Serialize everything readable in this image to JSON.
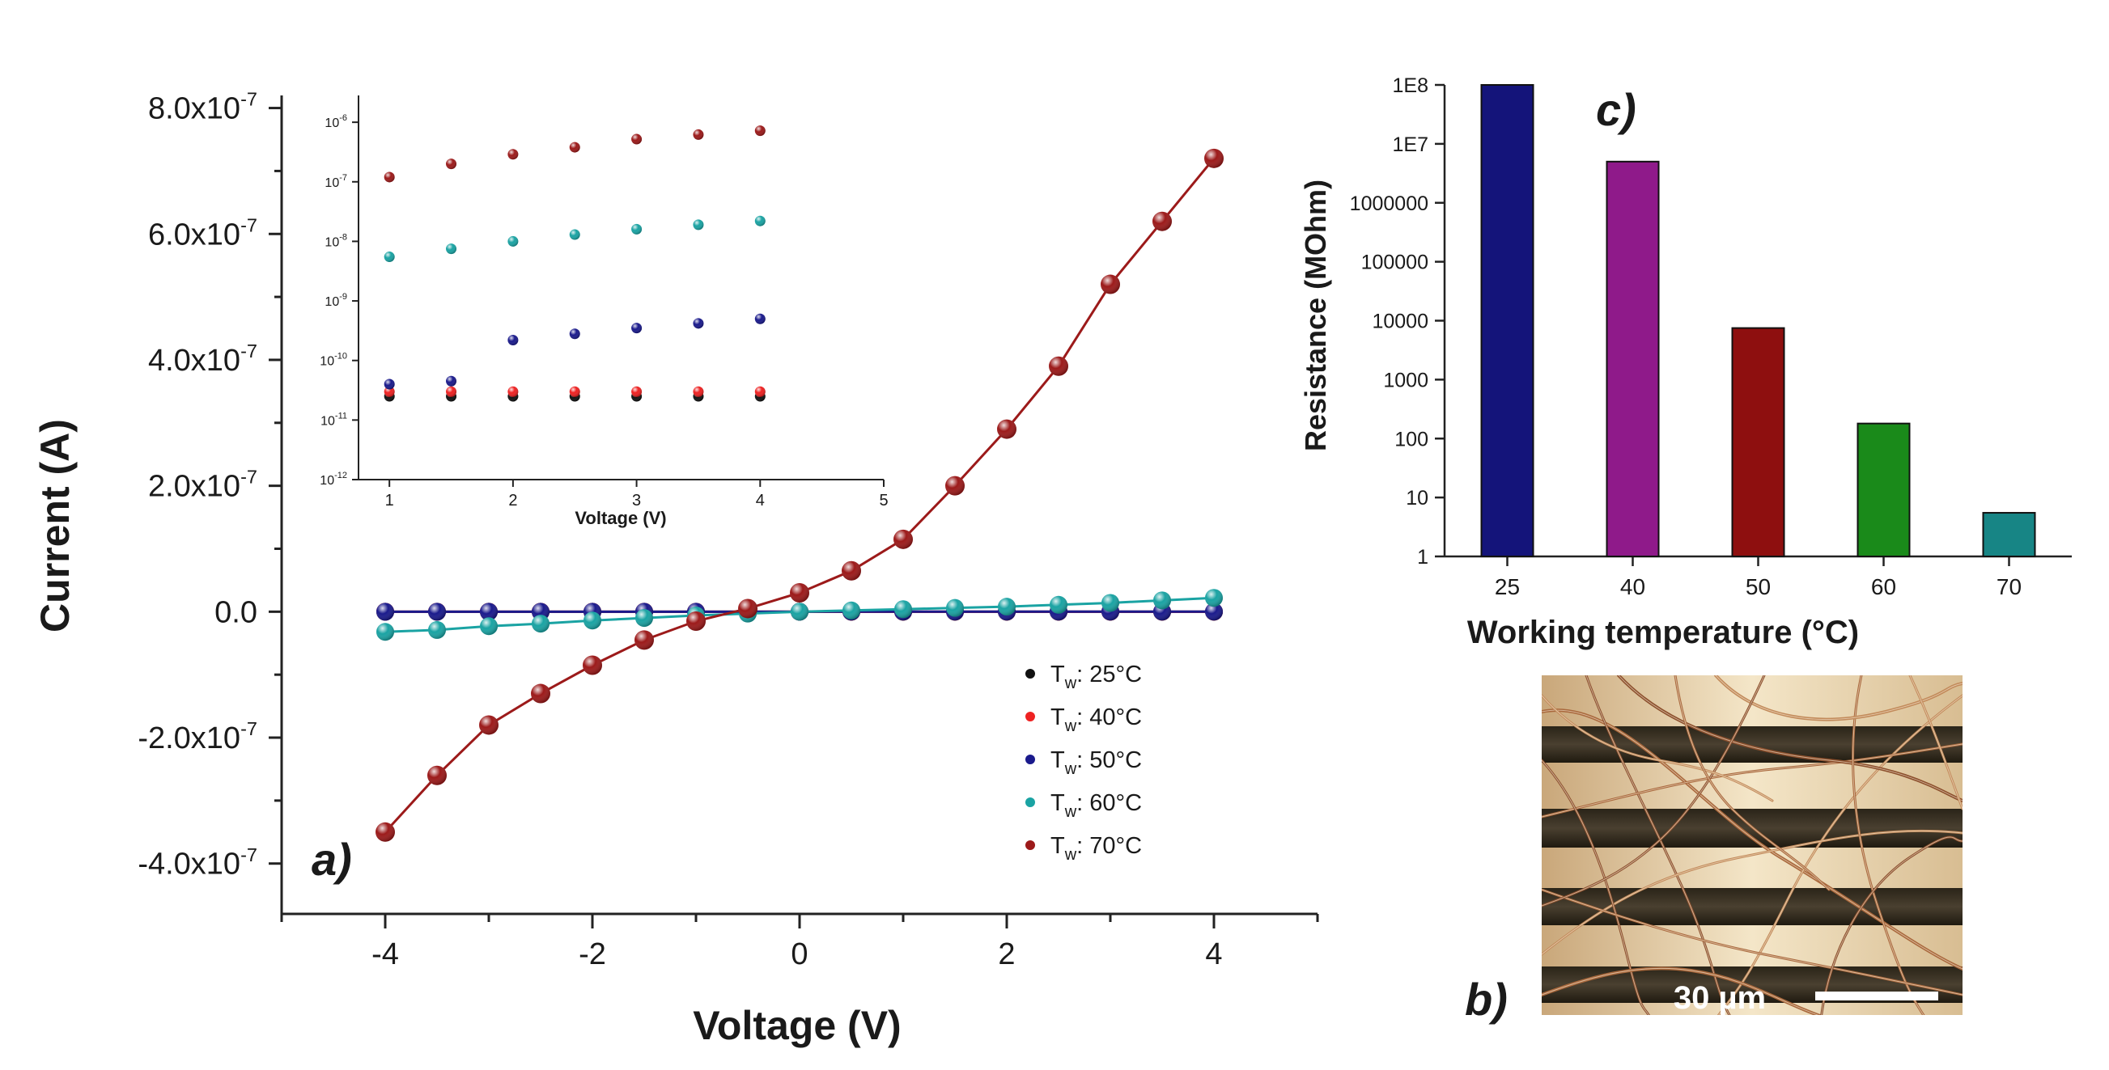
{
  "figure_labels": {
    "a": "a)",
    "b": "b)",
    "c": "c)"
  },
  "chart_data": [
    {
      "id": "panel-a",
      "type": "line",
      "title": "",
      "xlabel": "Voltage (V)",
      "ylabel": "Current (A)",
      "xlim": [
        -5,
        5
      ],
      "ylim": [
        -4.8e-07,
        8.2e-07
      ],
      "xticks": [
        -4,
        -2,
        0,
        2,
        4
      ],
      "yticks": [
        {
          "value": -4e-07,
          "mant": "-4.0x10",
          "exp": "-7"
        },
        {
          "value": -2e-07,
          "mant": "-2.0x10",
          "exp": "-7"
        },
        {
          "value": 0,
          "mant": "0.0",
          "exp": ""
        },
        {
          "value": 2e-07,
          "mant": "2.0x10",
          "exp": "-7"
        },
        {
          "value": 4e-07,
          "mant": "4.0x10",
          "exp": "-7"
        },
        {
          "value": 6e-07,
          "mant": "6.0x10",
          "exp": "-7"
        },
        {
          "value": 8e-07,
          "mant": "8.0x10",
          "exp": "-7"
        }
      ],
      "x": [
        -4,
        -3.5,
        -3,
        -2.5,
        -2,
        -1.5,
        -1,
        -0.5,
        0,
        0.5,
        1,
        1.5,
        2,
        2.5,
        3,
        3.5,
        4
      ],
      "series": [
        {
          "name": "Tw: 25°C",
          "legend": {
            "prefix": "T",
            "sub": "w",
            "suffix": ": 25°C"
          },
          "color": "#111111",
          "values": [
            0,
            0,
            0,
            0,
            0,
            0,
            0,
            0,
            0,
            0,
            0,
            0,
            0,
            0,
            0,
            0,
            0
          ]
        },
        {
          "name": "Tw: 40°C",
          "legend": {
            "prefix": "T",
            "sub": "w",
            "suffix": ": 40°C"
          },
          "color": "#ee2222",
          "values": [
            0,
            0,
            0,
            0,
            0,
            0,
            0,
            0,
            0,
            0,
            0,
            0,
            0,
            0,
            0,
            0,
            0
          ]
        },
        {
          "name": "Tw: 50°C",
          "legend": {
            "prefix": "T",
            "sub": "w",
            "suffix": ": 50°C"
          },
          "color": "#1a1a8c",
          "values": [
            -1e-10,
            -1e-10,
            -1e-10,
            -1e-10,
            -1e-10,
            -1e-10,
            -1e-10,
            -1e-10,
            0,
            1e-10,
            1e-10,
            1e-10,
            1e-10,
            1e-10,
            1e-10,
            1e-10,
            1e-10
          ]
        },
        {
          "name": "Tw: 60°C",
          "legend": {
            "prefix": "T",
            "sub": "w",
            "suffix": ": 60°C"
          },
          "color": "#1aa3a3",
          "values": [
            -3.2e-08,
            -2.9e-08,
            -2.3e-08,
            -1.9e-08,
            -1.4e-08,
            -1e-08,
            -6e-09,
            -3e-09,
            0,
            2e-09,
            4e-09,
            6e-09,
            8e-09,
            1.1e-08,
            1.4e-08,
            1.8e-08,
            2.2e-08
          ]
        },
        {
          "name": "Tw: 70°C",
          "legend": {
            "prefix": "T",
            "sub": "w",
            "suffix": ": 70°C"
          },
          "color": "#9c1a1a",
          "values": [
            -3.5e-07,
            -2.6e-07,
            -1.8e-07,
            -1.3e-07,
            -8.5e-08,
            -4.5e-08,
            -1.5e-08,
            5e-09,
            3e-08,
            6.5e-08,
            1.15e-07,
            2e-07,
            2.9e-07,
            3.9e-07,
            5.2e-07,
            6.2e-07,
            7.2e-07
          ]
        }
      ]
    },
    {
      "id": "panel-a-inset",
      "type": "scatter",
      "title": "",
      "xlabel": "Voltage (V)",
      "ylabel": "",
      "yscale": "log",
      "xlim": [
        0.75,
        5
      ],
      "ylim_exp": [
        -12,
        -5.55
      ],
      "xticks": [
        1,
        2,
        3,
        4,
        5
      ],
      "yticks": [
        {
          "value_exp": -12,
          "base": "10",
          "exp": "-12"
        },
        {
          "value_exp": -11,
          "base": "10",
          "exp": "-11"
        },
        {
          "value_exp": -10,
          "base": "10",
          "exp": "-10"
        },
        {
          "value_exp": -9,
          "base": "10",
          "exp": "-9"
        },
        {
          "value_exp": -8,
          "base": "10",
          "exp": "-8"
        },
        {
          "value_exp": -7,
          "base": "10",
          "exp": "-7"
        },
        {
          "value_exp": -6,
          "base": "10",
          "exp": "-6"
        }
      ],
      "series": [
        {
          "name": "Tw: 25°C",
          "color": "#111111",
          "x": [
            1,
            1.5,
            2,
            2.5,
            3,
            3.5,
            4
          ],
          "values": [
            2.5e-11,
            2.5e-11,
            2.5e-11,
            2.5e-11,
            2.5e-11,
            2.5e-11,
            2.5e-11
          ]
        },
        {
          "name": "Tw: 40°C",
          "color": "#ee2222",
          "x": [
            1,
            1.5,
            2,
            2.5,
            3,
            3.5,
            4
          ],
          "values": [
            3e-11,
            3e-11,
            3e-11,
            3e-11,
            3e-11,
            3e-11,
            3e-11
          ]
        },
        {
          "name": "Tw: 50°C",
          "color": "#1a1a8c",
          "x": [
            1,
            1.5,
            2,
            2.5,
            3,
            3.5,
            4
          ],
          "values": [
            4e-11,
            4.5e-11,
            2.2e-10,
            2.8e-10,
            3.5e-10,
            4.2e-10,
            5e-10
          ]
        },
        {
          "name": "Tw: 60°C",
          "color": "#1aa3a3",
          "x": [
            1,
            1.5,
            2,
            2.5,
            3,
            3.5,
            4
          ],
          "values": [
            5.5e-09,
            7.5e-09,
            1e-08,
            1.3e-08,
            1.6e-08,
            1.9e-08,
            2.2e-08
          ]
        },
        {
          "name": "Tw: 70°C",
          "color": "#9c1a1a",
          "x": [
            1,
            1.5,
            2,
            2.5,
            3,
            3.5,
            4
          ],
          "values": [
            1.2e-07,
            2e-07,
            2.9e-07,
            3.8e-07,
            5.2e-07,
            6.2e-07,
            7.2e-07
          ]
        }
      ]
    },
    {
      "id": "panel-c",
      "type": "bar",
      "title": "",
      "xlabel": "Working temperature (°C)",
      "ylabel": "Resistance (MOhm)",
      "yscale": "log",
      "ylim_exp": [
        0,
        8
      ],
      "yticks": [
        "1",
        "10",
        "100",
        "1000",
        "10000",
        "100000",
        "1000000",
        "1E7",
        "1E8"
      ],
      "categories": [
        "25",
        "40",
        "50",
        "60",
        "70"
      ],
      "values": [
        100000000,
        5000000,
        7500,
        180,
        5.5
      ],
      "colors": [
        "#14147a",
        "#8f1a8a",
        "#8e0f0f",
        "#1a8a1a",
        "#178585"
      ]
    }
  ],
  "micrograph": {
    "scale_label": "30 µm"
  }
}
